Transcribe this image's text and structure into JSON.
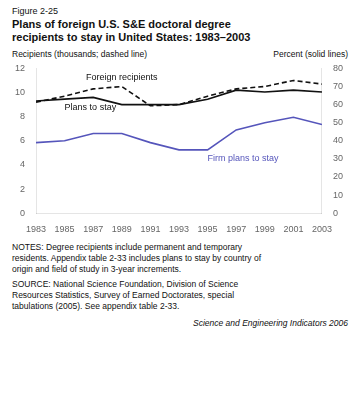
{
  "chart_data": {
    "type": "line",
    "figure_label": "Figure 2-25",
    "title": "Plans of foreign U.S. S&E doctoral degree\nrecipients to stay in United States: 1983–2003",
    "ylabel": "Recipients (thousands; dashed line)",
    "y2label": "Percent (solid lines)",
    "x": [
      1983,
      1985,
      1987,
      1989,
      1991,
      1993,
      1995,
      1997,
      1999,
      2001,
      2003
    ],
    "xlim": [
      1983,
      2003
    ],
    "xticks": [
      1983,
      1985,
      1987,
      1989,
      1991,
      1993,
      1995,
      1997,
      1999,
      2001,
      2003
    ],
    "ylim": [
      0,
      12
    ],
    "yticks": [
      0,
      2,
      4,
      6,
      8,
      10,
      12
    ],
    "y2lim": [
      0,
      80
    ],
    "y2ticks": [
      0,
      10,
      20,
      30,
      40,
      50,
      60,
      70,
      80
    ],
    "grid": false,
    "series": [
      {
        "name": "Foreign recipients",
        "color": "#111111",
        "line_style": "dashed",
        "axis": "y",
        "values": [
          9.2,
          9.7,
          10.3,
          10.5,
          8.9,
          9.0,
          9.7,
          10.3,
          10.5,
          11.0,
          10.7
        ]
      },
      {
        "name": "Plans to stay",
        "color": "#111111",
        "line_style": "solid",
        "axis": "y2",
        "values": [
          62,
          63,
          64,
          60,
          60,
          60,
          63,
          68,
          67,
          68,
          67
        ]
      },
      {
        "name": "Firm plans to stay",
        "color": "#5555bb",
        "line_style": "solid",
        "axis": "y2",
        "values": [
          39,
          40,
          44,
          44,
          39,
          35,
          35,
          46,
          50,
          53,
          49
        ]
      }
    ],
    "notes": "NOTES: Degree recipients include permanent and temporary\nresidents. Appendix table 2-33 includes plans to stay by country of\norigin and field of study in 3-year increments.",
    "source": "SOURCE: National Science Foundation, Division of Science\nResources Statistics, Survey of Earned Doctorates, special\ntabulations (2005). See appendix table 2-33.",
    "citation": "Science and Engineering Indicators 2006"
  }
}
